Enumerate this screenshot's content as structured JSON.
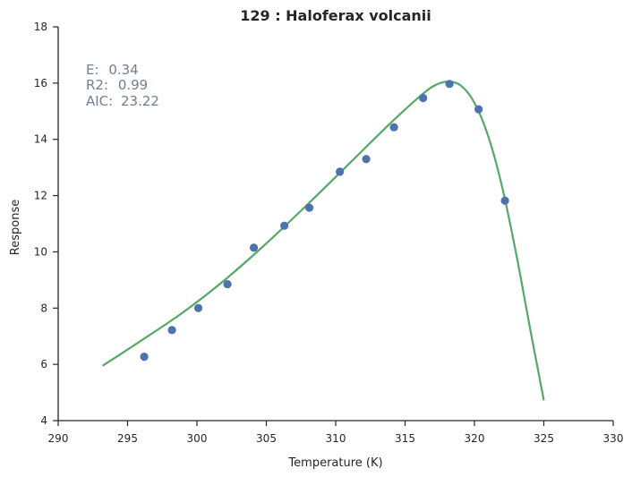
{
  "chart_data": {
    "type": "scatter",
    "title": "129 : Haloferax volcanii",
    "xlabel": "Temperature (K)",
    "ylabel": "Response",
    "xlim": [
      290,
      330
    ],
    "ylim": [
      4,
      18
    ],
    "xticks": [
      290,
      295,
      300,
      305,
      310,
      315,
      320,
      325,
      330
    ],
    "yticks": [
      4,
      6,
      8,
      10,
      12,
      14,
      16,
      18
    ],
    "grid": false,
    "stats": [
      {
        "label": "E:",
        "value": "0.34"
      },
      {
        "label": "R2:",
        "value": "0.99"
      },
      {
        "label": "AIC:",
        "value": "23.22"
      }
    ],
    "colors": {
      "points": "#4c72b0",
      "fit": "#55a868",
      "stats": "#6f7f90",
      "axis": "#262626"
    },
    "points": {
      "x": [
        296.2,
        298.2,
        300.1,
        302.2,
        304.1,
        306.3,
        308.1,
        310.3,
        312.2,
        314.2,
        316.3,
        318.2,
        320.3,
        322.2
      ],
      "y": [
        6.27,
        7.22,
        8.0,
        8.85,
        10.15,
        10.93,
        11.57,
        12.85,
        13.3,
        14.43,
        15.47,
        15.97,
        15.07,
        11.82
      ]
    },
    "fit": {
      "x": [
        293.2,
        296,
        299,
        302,
        305,
        308,
        311,
        314,
        316,
        317,
        318,
        319,
        320,
        321,
        322,
        323,
        324,
        325
      ],
      "y": [
        5.95,
        6.85,
        7.85,
        9.0,
        10.3,
        11.7,
        13.15,
        14.6,
        15.5,
        15.88,
        16.05,
        15.92,
        15.3,
        14.1,
        12.3,
        9.95,
        7.3,
        4.72
      ]
    }
  }
}
